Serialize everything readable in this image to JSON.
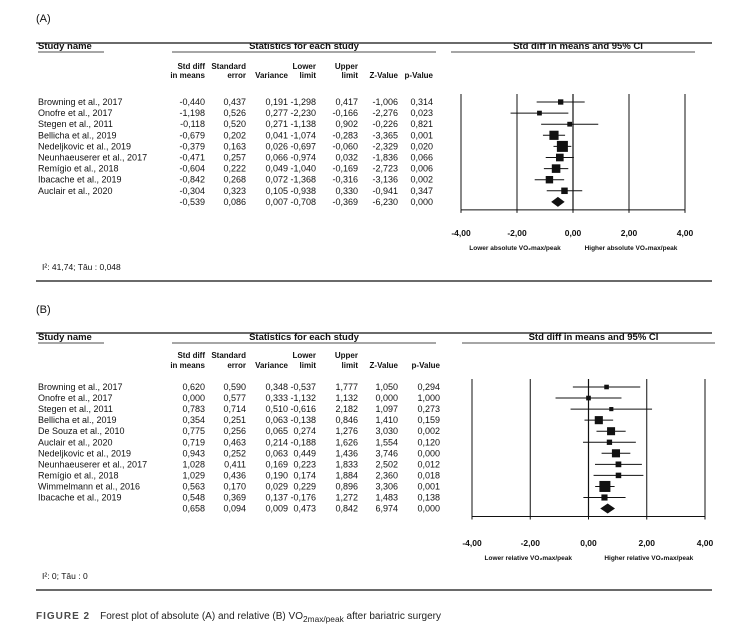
{
  "chart_data": [
    {
      "type": "forest",
      "panel_label": "(A)",
      "header": {
        "study_name": "Study name",
        "stats_title": "Statistics for each study",
        "plot_title": "Std diff in means and 95% CI"
      },
      "columns": [
        "Std diff in means",
        "Standard error",
        "Variance",
        "Lower limit",
        "Upper limit",
        "Z-Value",
        "p-Value"
      ],
      "studies": [
        {
          "name": "Browning et al., 2017",
          "values": [
            "-0,440",
            "0,437",
            "0,191",
            "-1,298",
            "0,417",
            "-1,006",
            "0,314"
          ],
          "est": -0.44,
          "lo": -1.298,
          "hi": 0.417,
          "weight": 0.191
        },
        {
          "name": "Onofre et al., 2017",
          "values": [
            "-1,198",
            "0,526",
            "0,277",
            "-2,230",
            "-0,166",
            "-2,276",
            "0,023"
          ],
          "est": -1.198,
          "lo": -2.23,
          "hi": -0.166,
          "weight": 0.277
        },
        {
          "name": "Stegen et al., 2011",
          "values": [
            "-0,118",
            "0,520",
            "0,271",
            "-1,138",
            "0,902",
            "-0,226",
            "0,821"
          ],
          "est": -0.118,
          "lo": -1.138,
          "hi": 0.902,
          "weight": 0.271
        },
        {
          "name": "Bellicha et al., 2019",
          "values": [
            "-0,679",
            "0,202",
            "0,041",
            "-1,074",
            "-0,283",
            "-3,365",
            "0,001"
          ],
          "est": -0.679,
          "lo": -1.074,
          "hi": -0.283,
          "weight": 0.041
        },
        {
          "name": "Nedeljkovic et al., 2019",
          "values": [
            "-0,379",
            "0,163",
            "0,026",
            "-0,697",
            "-0,060",
            "-2,329",
            "0,020"
          ],
          "est": -0.379,
          "lo": -0.697,
          "hi": -0.06,
          "weight": 0.026
        },
        {
          "name": "Neunhaeuserer et al., 2017",
          "values": [
            "-0,471",
            "0,257",
            "0,066",
            "-0,974",
            "0,032",
            "-1,836",
            "0,066"
          ],
          "est": -0.471,
          "lo": -0.974,
          "hi": 0.032,
          "weight": 0.066
        },
        {
          "name": "Remígio et al., 2018",
          "values": [
            "-0,604",
            "0,222",
            "0,049",
            "-1,040",
            "-0,169",
            "-2,723",
            "0,006"
          ],
          "est": -0.604,
          "lo": -1.04,
          "hi": -0.169,
          "weight": 0.049
        },
        {
          "name": "Ibacache et al., 2019",
          "values": [
            "-0,842",
            "0,268",
            "0,072",
            "-1,368",
            "-0,316",
            "-3,136",
            "0,002"
          ],
          "est": -0.842,
          "lo": -1.368,
          "hi": -0.316,
          "weight": 0.072
        },
        {
          "name": "Auclair et al., 2020",
          "values": [
            "-0,304",
            "0,323",
            "0,105",
            "-0,938",
            "0,330",
            "-0,941",
            "0,347"
          ],
          "est": -0.304,
          "lo": -0.938,
          "hi": 0.33,
          "weight": 0.105
        }
      ],
      "summary": {
        "values": [
          "-0,539",
          "0,086",
          "0,007",
          "-0,708",
          "-0,369",
          "-6,230",
          "0,000"
        ],
        "est": -0.539,
        "lo": -0.708,
        "hi": -0.369
      },
      "xlim": [
        -4,
        4
      ],
      "xticks": [
        {
          "value": -4,
          "label": "-4,00"
        },
        {
          "value": -2,
          "label": "-2,00"
        },
        {
          "value": 0,
          "label": "0,00"
        },
        {
          "value": 2,
          "label": "2,00"
        },
        {
          "value": 4,
          "label": "4,00"
        }
      ],
      "xlabel_left": "Lower absolute VO₂max/peak",
      "xlabel_right": "Higher absolute VO₂max/peak",
      "heterogeneity": "I²: 41,74; Tâu : 0,048"
    },
    {
      "type": "forest",
      "panel_label": "(B)",
      "header": {
        "study_name": "Study name",
        "stats_title": "Statistics for each study",
        "plot_title": "Std diff in means and 95% CI"
      },
      "columns": [
        "Std diff in means",
        "Standard error",
        "Variance",
        "Lower limit",
        "Upper limit",
        "Z-Value",
        "p-Value"
      ],
      "studies": [
        {
          "name": "Browning et al., 2017",
          "values": [
            "0,620",
            "0,590",
            "0,348",
            "-0,537",
            "1,777",
            "1,050",
            "0,294"
          ],
          "est": 0.62,
          "lo": -0.537,
          "hi": 1.777,
          "weight": 0.348
        },
        {
          "name": "Onofre et al., 2017",
          "values": [
            "0,000",
            "0,577",
            "0,333",
            "-1,132",
            "1,132",
            "0,000",
            "1,000"
          ],
          "est": 0.0,
          "lo": -1.132,
          "hi": 1.132,
          "weight": 0.333
        },
        {
          "name": "Stegen et al., 2011",
          "values": [
            "0,783",
            "0,714",
            "0,510",
            "-0,616",
            "2,182",
            "1,097",
            "0,273"
          ],
          "est": 0.783,
          "lo": -0.616,
          "hi": 2.182,
          "weight": 0.51
        },
        {
          "name": "Bellicha et al., 2019",
          "values": [
            "0,354",
            "0,251",
            "0,063",
            "-0,138",
            "0,846",
            "1,410",
            "0,159"
          ],
          "est": 0.354,
          "lo": -0.138,
          "hi": 0.846,
          "weight": 0.063
        },
        {
          "name": "De Souza et al., 2010",
          "values": [
            "0,775",
            "0,256",
            "0,065",
            "0,274",
            "1,276",
            "3,030",
            "0,002"
          ],
          "est": 0.775,
          "lo": 0.274,
          "hi": 1.276,
          "weight": 0.065
        },
        {
          "name": "Auclair et al., 2020",
          "values": [
            "0,719",
            "0,463",
            "0,214",
            "-0,188",
            "1,626",
            "1,554",
            "0,120"
          ],
          "est": 0.719,
          "lo": -0.188,
          "hi": 1.626,
          "weight": 0.214
        },
        {
          "name": "Nedeljkovic et al., 2019",
          "values": [
            "0,943",
            "0,252",
            "0,063",
            "0,449",
            "1,436",
            "3,746",
            "0,000"
          ],
          "est": 0.943,
          "lo": 0.449,
          "hi": 1.436,
          "weight": 0.063
        },
        {
          "name": "Neunhaeuserer et al., 2017",
          "values": [
            "1,028",
            "0,411",
            "0,169",
            "0,223",
            "1,833",
            "2,502",
            "0,012"
          ],
          "est": 1.028,
          "lo": 0.223,
          "hi": 1.833,
          "weight": 0.169
        },
        {
          "name": "Remígio et al., 2018",
          "values": [
            "1,029",
            "0,436",
            "0,190",
            "0,174",
            "1,884",
            "2,360",
            "0,018"
          ],
          "est": 1.029,
          "lo": 0.174,
          "hi": 1.884,
          "weight": 0.19
        },
        {
          "name": "Wimmelmann et al., 2016",
          "values": [
            "0,563",
            "0,170",
            "0,029",
            "0,229",
            "0,896",
            "3,306",
            "0,001"
          ],
          "est": 0.563,
          "lo": 0.229,
          "hi": 0.896,
          "weight": 0.029
        },
        {
          "name": "Ibacache et al., 2019",
          "values": [
            "0,548",
            "0,369",
            "0,137",
            "-0,176",
            "1,272",
            "1,483",
            "0,138"
          ],
          "est": 0.548,
          "lo": -0.176,
          "hi": 1.272,
          "weight": 0.137
        }
      ],
      "summary": {
        "values": [
          "0,658",
          "0,094",
          "0,009",
          "0,473",
          "0,842",
          "6,974",
          "0,000"
        ],
        "est": 0.658,
        "lo": 0.473,
        "hi": 0.842
      },
      "xlim": [
        -4,
        4
      ],
      "xticks": [
        {
          "value": -4,
          "label": "-4,00"
        },
        {
          "value": -2,
          "label": "-2,00"
        },
        {
          "value": 0,
          "label": "0,00"
        },
        {
          "value": 2,
          "label": "2,00"
        },
        {
          "value": 4,
          "label": "4,00"
        }
      ],
      "xlabel_left": "Lower relative VO₂max/peak",
      "xlabel_right": "Higher relative VO₂max/peak",
      "heterogeneity": "I²: 0; Tâu : 0"
    }
  ],
  "caption": {
    "figure_number": "FIGURE 2",
    "text": "Forest plot of absolute (A) and relative (B) VO",
    "subscript": "2max/peak",
    "text_after": " after bariatric surgery"
  }
}
